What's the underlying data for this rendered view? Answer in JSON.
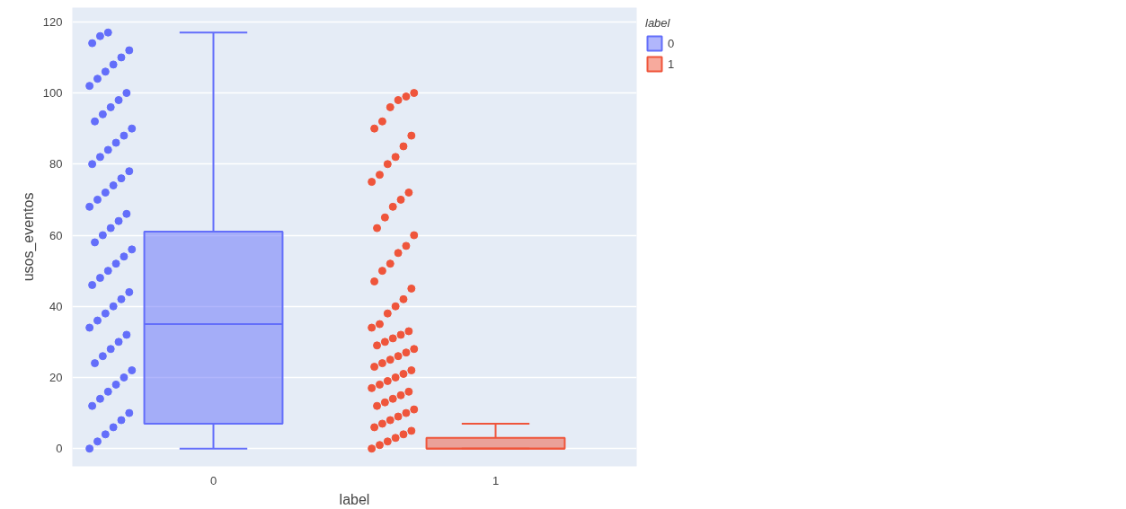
{
  "chart_data": {
    "type": "box",
    "xlabel": "label",
    "ylabel": "usos_eventos",
    "legend_title": "label",
    "categories": [
      "0",
      "1"
    ],
    "ylim": [
      -5,
      124
    ],
    "yticks": [
      0,
      20,
      40,
      60,
      80,
      100,
      120
    ],
    "grid": "y",
    "legend": "top right",
    "series": [
      {
        "name": "0",
        "color": "#636efa",
        "boxes": [
          {
            "low": 0,
            "q1": 7,
            "median": 35,
            "q3": 61,
            "high": 117
          },
          null
        ]
      },
      {
        "name": "1",
        "color": "#ef553b",
        "boxes": [
          null,
          {
            "low": 0,
            "q1": 0,
            "median": 0,
            "q3": 3,
            "high": 7
          }
        ]
      },
      {
        "type": "scatter",
        "color": "#636efa",
        "x": [
          "0",
          "0",
          "0",
          "0",
          "0",
          "0",
          "0",
          "0",
          "0",
          "0",
          "0",
          "0",
          "0",
          "0",
          "0",
          "0",
          "0",
          "0",
          "0",
          "0",
          "0",
          "0",
          "0",
          "0",
          "0",
          "0",
          "0",
          "0",
          "0",
          "0",
          "0",
          "0",
          "0",
          "0",
          "0",
          "0",
          "0",
          "0",
          "0",
          "0",
          "0",
          "0",
          "0",
          "0",
          "0",
          "0",
          "0",
          "0",
          "0",
          "0",
          "0",
          "0",
          "0",
          "0",
          "0",
          "0",
          "0",
          "0",
          "0",
          "0"
        ],
        "values": [
          0,
          2,
          4,
          6,
          8,
          10,
          12,
          14,
          16,
          18,
          20,
          22,
          24,
          26,
          28,
          30,
          32,
          34,
          36,
          38,
          40,
          42,
          44,
          46,
          48,
          50,
          52,
          54,
          56,
          58,
          60,
          62,
          64,
          66,
          68,
          70,
          72,
          74,
          76,
          78,
          80,
          82,
          84,
          86,
          88,
          90,
          92,
          94,
          96,
          98,
          100,
          102,
          104,
          106,
          108,
          110,
          112,
          114,
          116,
          117
        ]
      },
      {
        "type": "scatter",
        "color": "#ef553b",
        "x": [
          "1",
          "1",
          "1",
          "1",
          "1",
          "1",
          "1",
          "1",
          "1",
          "1",
          "1",
          "1",
          "1",
          "1",
          "1",
          "1",
          "1",
          "1",
          "1",
          "1",
          "1",
          "1",
          "1",
          "1",
          "1",
          "1",
          "1",
          "1",
          "1",
          "1",
          "1",
          "1",
          "1",
          "1",
          "1",
          "1",
          "1",
          "1",
          "1",
          "1",
          "1",
          "1",
          "1",
          "1",
          "1",
          "1",
          "1",
          "1",
          "1",
          "1",
          "1",
          "1",
          "1",
          "1",
          "1",
          "1",
          "1",
          "1",
          "1",
          "1",
          "1",
          "1",
          "1"
        ],
        "values": [
          0,
          1,
          2,
          3,
          4,
          5,
          6,
          7,
          8,
          9,
          10,
          11,
          12,
          13,
          14,
          15,
          16,
          17,
          18,
          19,
          20,
          21,
          22,
          23,
          24,
          25,
          26,
          27,
          28,
          29,
          30,
          31,
          32,
          33,
          34,
          35,
          38,
          40,
          42,
          45,
          47,
          50,
          52,
          55,
          57,
          60,
          62,
          65,
          68,
          70,
          72,
          75,
          77,
          80,
          82,
          85,
          88,
          90,
          92,
          96,
          98,
          99,
          100
        ]
      }
    ]
  }
}
